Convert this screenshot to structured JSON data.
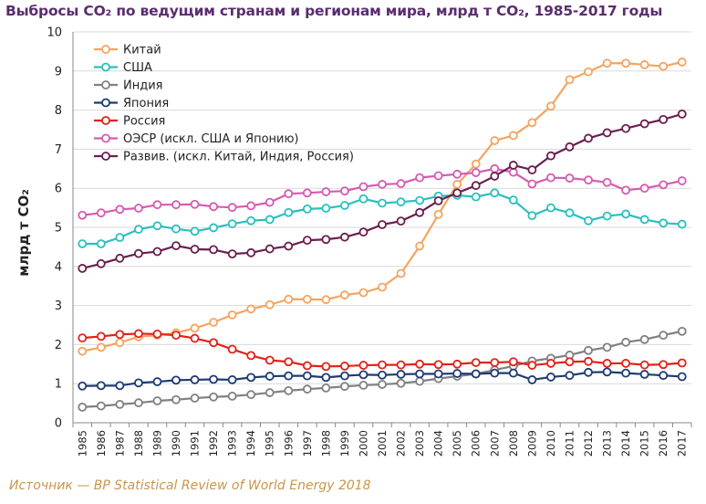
{
  "title": "Выбросы CO₂ по ведущим странам и регионам мира, млрд т CO₂, 1985-2017 годы",
  "ylabel": "млрд т CO₂",
  "source": "Источник — BP Statistical Review of World Energy 2018",
  "chart_data": {
    "type": "line",
    "title": "Выбросы CO₂ по ведущим странам и регионам мира, млрд т CO₂, 1985-2017 годы",
    "xlabel": "",
    "ylabel": "млрд т CO₂",
    "ylim": [
      0,
      10
    ],
    "yticks": [
      0,
      1,
      2,
      3,
      4,
      5,
      6,
      7,
      8,
      9,
      10
    ],
    "grid": true,
    "legend_position": "top-left",
    "x": [
      "1985",
      "1986",
      "1987",
      "1988",
      "1989",
      "1990",
      "1991",
      "1992",
      "1993",
      "1994",
      "1995",
      "1996",
      "1997",
      "1998",
      "1999",
      "2000",
      "2001",
      "2002",
      "2003",
      "2004",
      "2005",
      "2006",
      "2007",
      "2008",
      "2009",
      "2010",
      "2011",
      "2012",
      "2013",
      "2014",
      "2015",
      "2016",
      "2017"
    ],
    "series": [
      {
        "name": "Китай",
        "color": "#f4a460",
        "values": [
          1.83,
          1.93,
          2.05,
          2.2,
          2.24,
          2.3,
          2.42,
          2.57,
          2.76,
          2.91,
          3.02,
          3.16,
          3.16,
          3.15,
          3.27,
          3.33,
          3.47,
          3.82,
          4.52,
          5.33,
          6.1,
          6.62,
          7.22,
          7.35,
          7.68,
          8.1,
          8.78,
          8.98,
          9.2,
          9.2,
          9.16,
          9.12,
          9.23
        ]
      },
      {
        "name": "США",
        "color": "#2abfbf",
        "values": [
          4.58,
          4.58,
          4.74,
          4.95,
          5.04,
          4.96,
          4.9,
          4.99,
          5.09,
          5.17,
          5.2,
          5.38,
          5.47,
          5.49,
          5.56,
          5.73,
          5.62,
          5.65,
          5.69,
          5.8,
          5.82,
          5.78,
          5.88,
          5.7,
          5.3,
          5.5,
          5.37,
          5.17,
          5.29,
          5.34,
          5.2,
          5.11,
          5.08
        ]
      },
      {
        "name": "Индия",
        "color": "#808080",
        "values": [
          0.4,
          0.43,
          0.47,
          0.51,
          0.56,
          0.59,
          0.63,
          0.66,
          0.68,
          0.72,
          0.77,
          0.82,
          0.86,
          0.89,
          0.93,
          0.96,
          0.98,
          1.01,
          1.06,
          1.13,
          1.19,
          1.25,
          1.35,
          1.45,
          1.58,
          1.65,
          1.73,
          1.85,
          1.93,
          2.06,
          2.13,
          2.24,
          2.34
        ]
      },
      {
        "name": "Япония",
        "color": "#1f3b73",
        "values": [
          0.94,
          0.95,
          0.95,
          1.02,
          1.05,
          1.09,
          1.1,
          1.11,
          1.1,
          1.16,
          1.19,
          1.2,
          1.2,
          1.16,
          1.2,
          1.23,
          1.22,
          1.24,
          1.25,
          1.25,
          1.26,
          1.25,
          1.27,
          1.27,
          1.1,
          1.17,
          1.21,
          1.29,
          1.3,
          1.27,
          1.24,
          1.21,
          1.18
        ]
      },
      {
        "name": "Россия",
        "color": "#e32119",
        "values": [
          2.17,
          2.21,
          2.26,
          2.28,
          2.27,
          2.24,
          2.16,
          2.05,
          1.88,
          1.72,
          1.6,
          1.56,
          1.46,
          1.44,
          1.45,
          1.47,
          1.48,
          1.48,
          1.5,
          1.49,
          1.5,
          1.54,
          1.54,
          1.56,
          1.47,
          1.52,
          1.56,
          1.57,
          1.52,
          1.52,
          1.48,
          1.49,
          1.53
        ]
      },
      {
        "name": "ОЭСР (искл. США и Японию)",
        "color": "#d65ab0",
        "values": [
          5.31,
          5.37,
          5.46,
          5.49,
          5.58,
          5.58,
          5.59,
          5.53,
          5.51,
          5.55,
          5.64,
          5.86,
          5.88,
          5.91,
          5.93,
          6.04,
          6.1,
          6.12,
          6.27,
          6.32,
          6.36,
          6.4,
          6.5,
          6.41,
          6.11,
          6.27,
          6.26,
          6.21,
          6.15,
          5.95,
          6.0,
          6.09,
          6.19
        ]
      },
      {
        "name": "Развив. (искл. Китай, Индия, Россия)",
        "color": "#6b1e4e",
        "values": [
          3.95,
          4.07,
          4.21,
          4.33,
          4.38,
          4.53,
          4.44,
          4.43,
          4.32,
          4.35,
          4.45,
          4.52,
          4.67,
          4.69,
          4.75,
          4.88,
          5.07,
          5.16,
          5.38,
          5.68,
          5.88,
          6.07,
          6.31,
          6.59,
          6.47,
          6.83,
          7.06,
          7.28,
          7.42,
          7.53,
          7.65,
          7.76,
          7.9
        ]
      }
    ]
  }
}
